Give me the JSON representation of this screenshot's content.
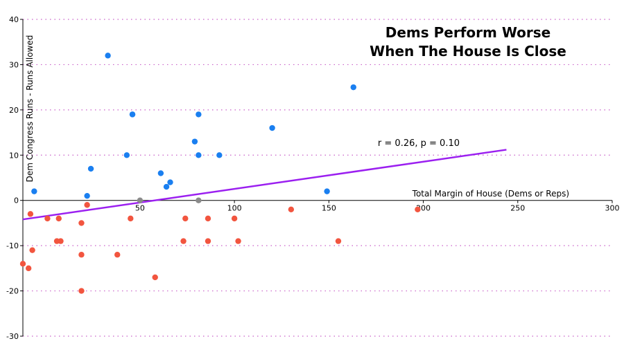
{
  "chart_data": {
    "type": "scatter",
    "title_lines": [
      "Dems Perform Worse",
      "When The House Is Close"
    ],
    "xlabel": "Total Margin of House (Dems or Reps)",
    "ylabel": "Dem Congress Runs - Runs Allowed",
    "xlim": [
      -12,
      300
    ],
    "ylim": [
      -30,
      40
    ],
    "x_ticks": [
      50,
      100,
      150,
      200,
      250,
      300
    ],
    "y_ticks": [
      40,
      30,
      20,
      10,
      0,
      -10,
      -20,
      -30
    ],
    "grid": "horizontal dotted",
    "annotation": "r = 0.26, p = 0.10",
    "trendline": {
      "x": [
        -12,
        244
      ],
      "y": [
        -4.2,
        11.2
      ]
    },
    "colors": {
      "win": "#1a7ff0",
      "loss": "#f2553f",
      "tie": "#8a8a8a",
      "trend": "#9b1ff0",
      "grid": "#c85fc8",
      "axis": "#000000"
    },
    "series": [
      {
        "group": "win",
        "points": [
          [
            33,
            32
          ],
          [
            -6,
            2
          ],
          [
            22,
            1
          ],
          [
            24,
            7
          ],
          [
            43,
            10
          ],
          [
            46,
            19
          ],
          [
            46,
            19
          ],
          [
            61,
            6
          ],
          [
            64,
            3
          ],
          [
            66,
            4
          ],
          [
            79,
            13
          ],
          [
            81,
            10
          ],
          [
            81,
            19
          ],
          [
            92,
            10
          ],
          [
            120,
            16
          ],
          [
            149,
            2
          ],
          [
            163,
            25
          ]
        ]
      },
      {
        "group": "loss",
        "points": [
          [
            -8,
            -3
          ],
          [
            1,
            -4
          ],
          [
            7,
            -4
          ],
          [
            22,
            -1
          ],
          [
            19,
            -5
          ],
          [
            45,
            -4
          ],
          [
            74,
            -4
          ],
          [
            86,
            -4
          ],
          [
            100,
            -4
          ],
          [
            130,
            -2
          ],
          [
            197,
            -2
          ],
          [
            8,
            -9
          ],
          [
            19,
            -12
          ],
          [
            38,
            -12
          ],
          [
            -12,
            -14
          ],
          [
            -9,
            -15
          ],
          [
            -7,
            -11
          ],
          [
            6,
            -9
          ],
          [
            73,
            -9
          ],
          [
            86,
            -9
          ],
          [
            102,
            -9
          ],
          [
            155,
            -9
          ],
          [
            58,
            -17
          ],
          [
            19,
            -20
          ]
        ]
      },
      {
        "group": "tie",
        "points": [
          [
            50,
            0
          ],
          [
            81,
            0
          ]
        ]
      }
    ]
  }
}
